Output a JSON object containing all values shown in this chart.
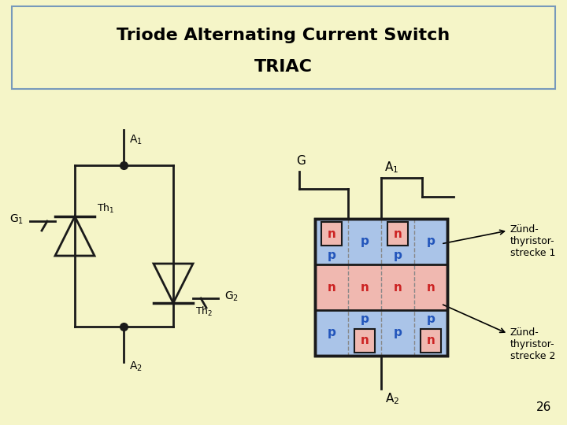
{
  "bg_color": "#f5f5c8",
  "title_line1": "Triode Alternating Current Switch",
  "title_line2": "TRIAC",
  "slide_number": "26",
  "p_color": "#aac4e8",
  "n_color": "#f0b8b0",
  "n_label_color": "#cc2222",
  "p_label_color": "#2255bb",
  "border_color": "#1a1a1a",
  "line_color": "#1a1a1a",
  "title_border_color": "#7799bb",
  "dashed_color": "#888888"
}
